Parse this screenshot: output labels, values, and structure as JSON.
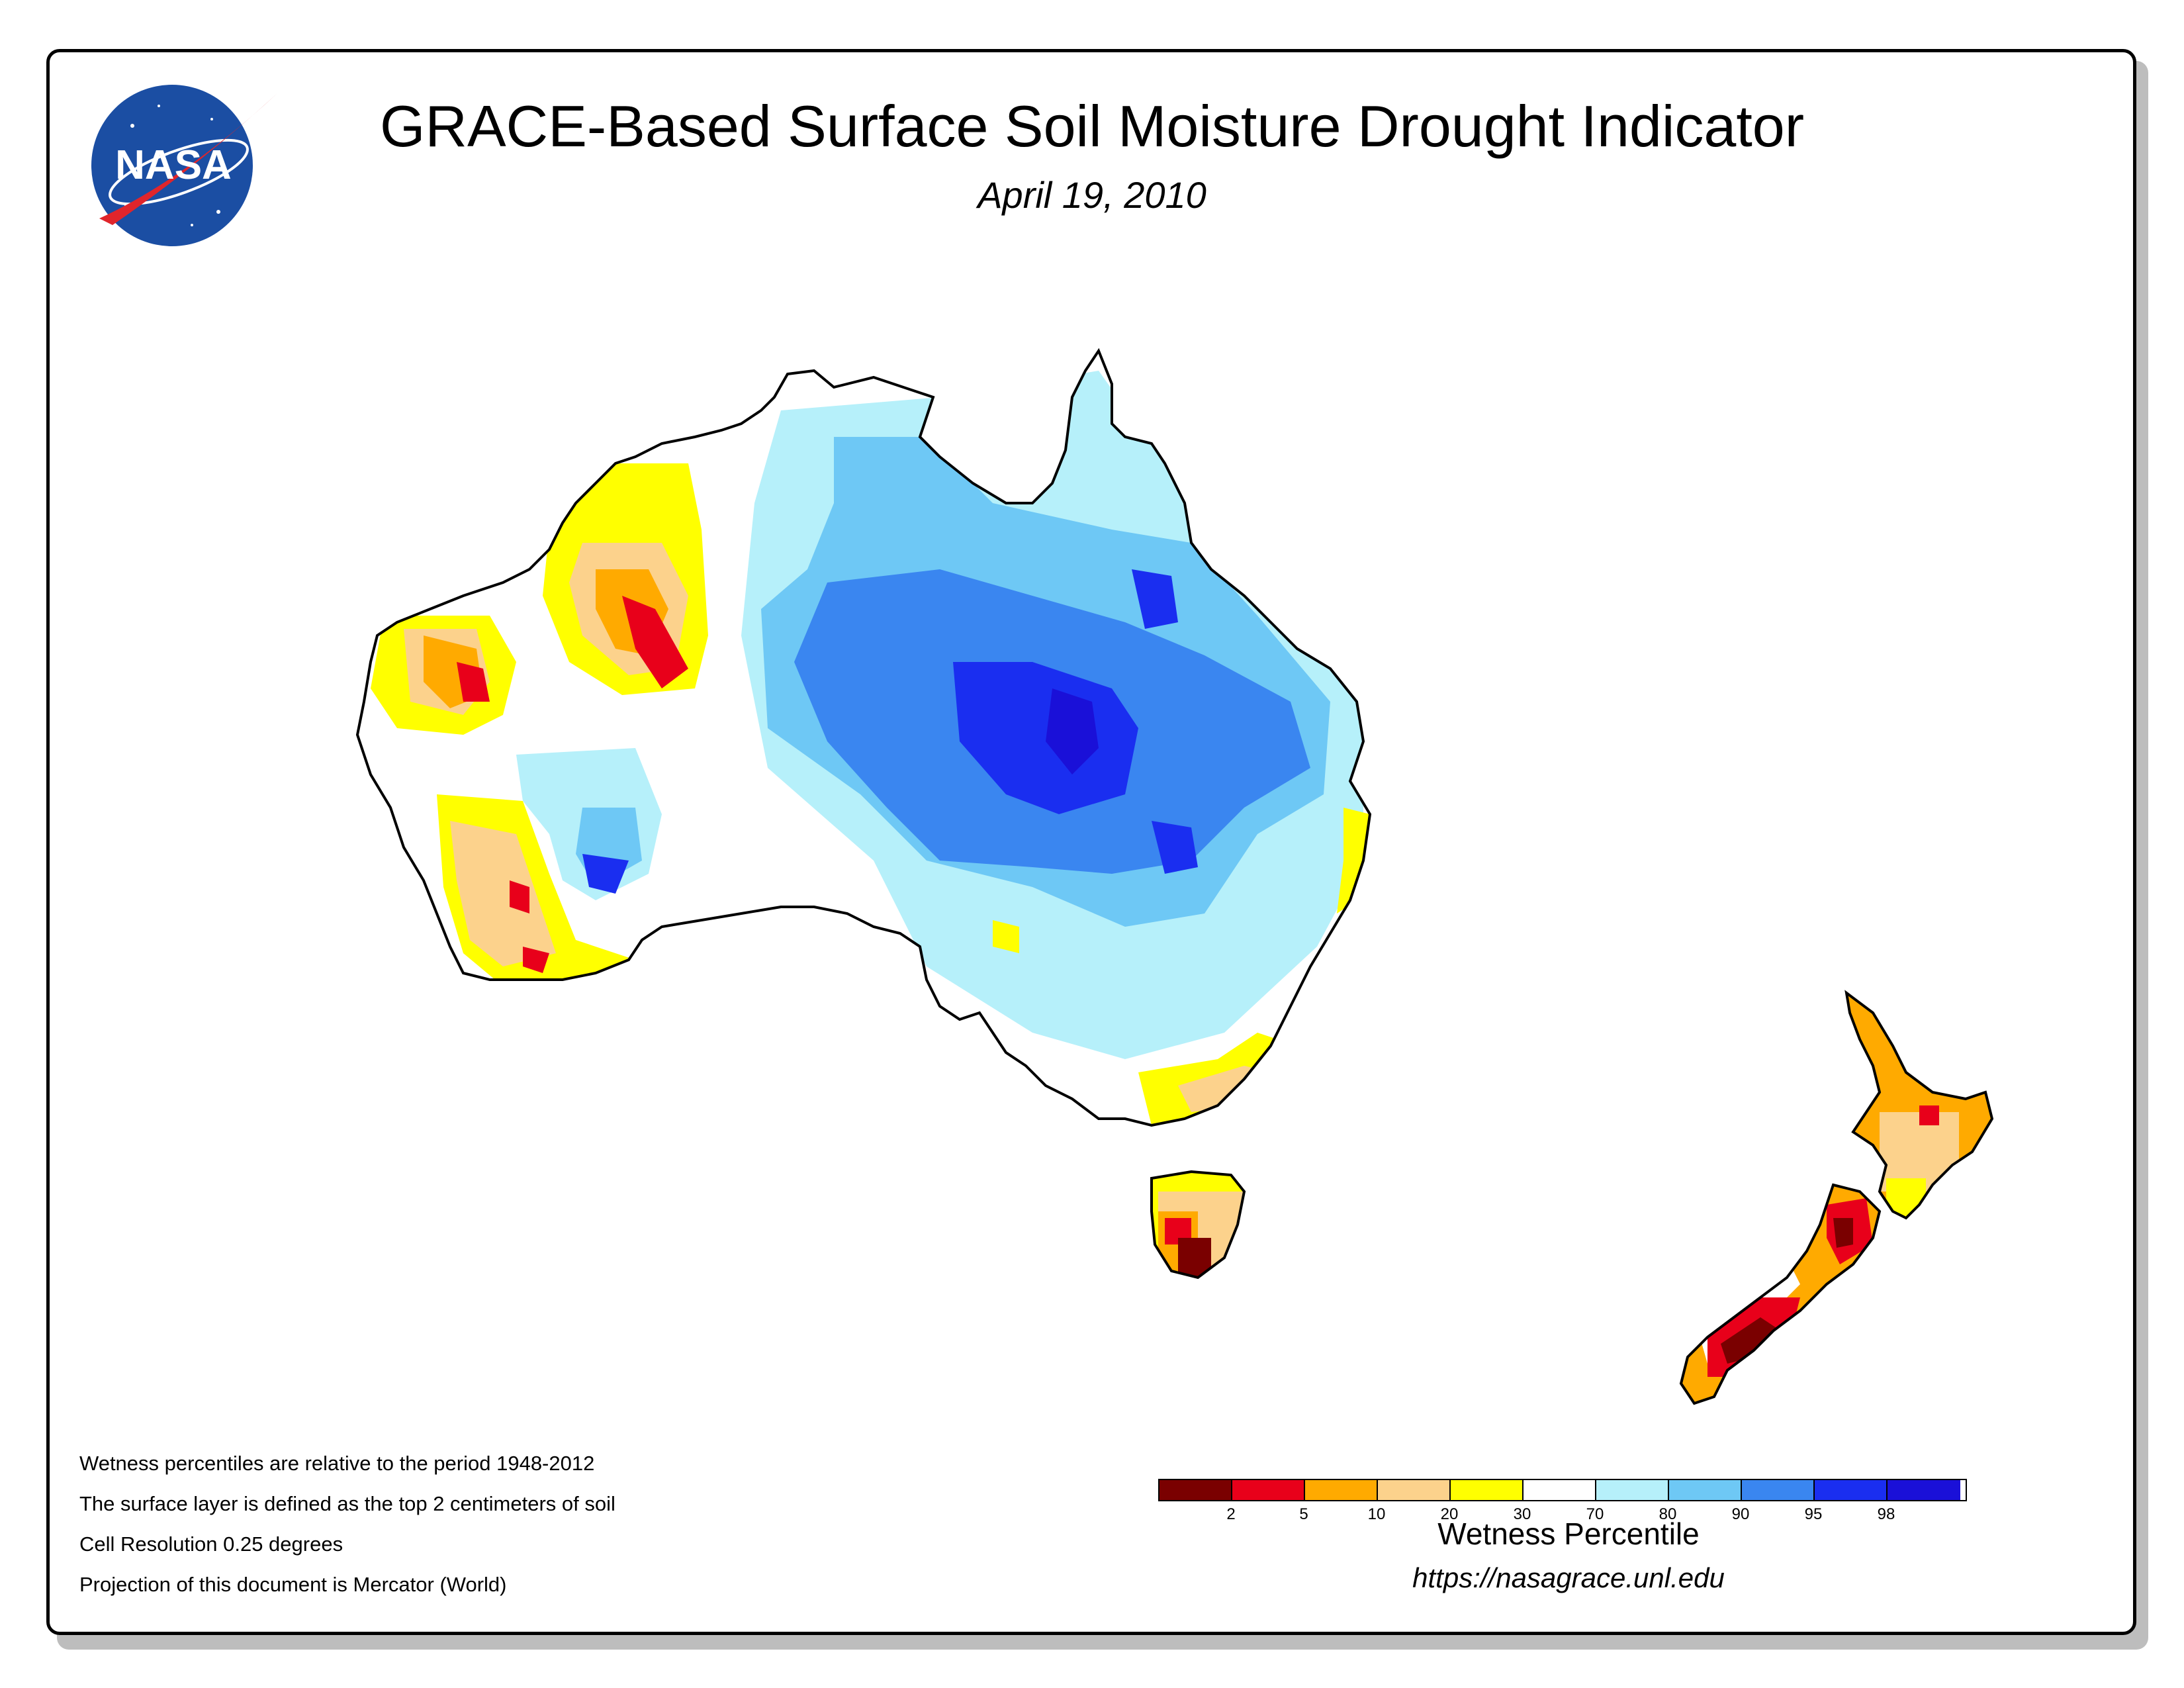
{
  "title": "GRACE-Based Surface Soil Moisture Drought Indicator",
  "date": "April 19, 2010",
  "logo_text": "NASA",
  "notes": [
    "Wetness percentiles are relative to the period 1948-2012",
    "The surface layer is defined as the top 2 centimeters of soil",
    "Cell Resolution 0.25 degrees",
    "Projection of this document is Mercator (World)"
  ],
  "legend": {
    "title": "Wetness Percentile",
    "ticks": [
      "2",
      "5",
      "10",
      "20",
      "30",
      "70",
      "80",
      "90",
      "95",
      "98"
    ],
    "colors": [
      "#7a0000",
      "#e8001a",
      "#ffaa00",
      "#fcd28c",
      "#ffff00",
      "#ffffff",
      "#b6f0fa",
      "#6ec8f5",
      "#3a86f0",
      "#1a2ef0",
      "#1a10d8"
    ]
  },
  "source_url": "https://nasagrace.unl.edu",
  "map": {
    "regions": [
      "Australia",
      "Tasmania",
      "New Zealand North Island",
      "New Zealand South Island"
    ]
  }
}
